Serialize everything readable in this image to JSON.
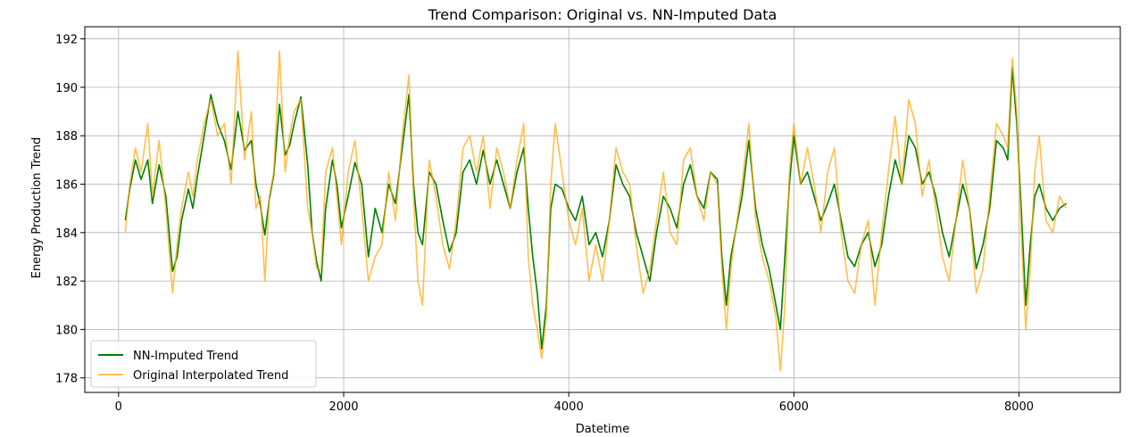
{
  "chart_data": {
    "type": "line",
    "title": "Trend Comparison: Original vs. NN-Imputed Data",
    "xlabel": "Datetime",
    "ylabel": "Energy Production Trend",
    "xlim": [
      -300,
      8900
    ],
    "ylim": [
      177.4,
      192.5
    ],
    "xticks": [
      0,
      2000,
      4000,
      6000,
      8000
    ],
    "yticks": [
      178,
      180,
      182,
      184,
      186,
      188,
      190,
      192
    ],
    "grid": true,
    "legend_position": "lower-left",
    "series": [
      {
        "name": "NN-Imputed Trend",
        "color": "#008000",
        "x": [
          60,
          100,
          150,
          200,
          260,
          300,
          360,
          420,
          480,
          520,
          560,
          620,
          660,
          700,
          760,
          820,
          880,
          940,
          1000,
          1060,
          1120,
          1180,
          1220,
          1260,
          1300,
          1340,
          1380,
          1430,
          1480,
          1520,
          1560,
          1620,
          1680,
          1720,
          1760,
          1800,
          1840,
          1900,
          1940,
          1980,
          2040,
          2100,
          2160,
          2220,
          2280,
          2340,
          2400,
          2460,
          2520,
          2580,
          2620,
          2660,
          2700,
          2760,
          2820,
          2880,
          2940,
          3000,
          3060,
          3120,
          3180,
          3240,
          3300,
          3360,
          3420,
          3480,
          3540,
          3600,
          3640,
          3680,
          3720,
          3760,
          3800,
          3840,
          3880,
          3940,
          4000,
          4060,
          4120,
          4180,
          4240,
          4300,
          4360,
          4420,
          4480,
          4540,
          4600,
          4660,
          4720,
          4780,
          4840,
          4900,
          4960,
          5020,
          5080,
          5140,
          5200,
          5260,
          5320,
          5360,
          5400,
          5440,
          5480,
          5540,
          5600,
          5660,
          5720,
          5780,
          5840,
          5880,
          5920,
          5960,
          6000,
          6060,
          6120,
          6180,
          6240,
          6300,
          6360,
          6420,
          6480,
          6540,
          6600,
          6660,
          6720,
          6780,
          6840,
          6900,
          6960,
          7020,
          7080,
          7140,
          7200,
          7260,
          7320,
          7380,
          7440,
          7500,
          7560,
          7620,
          7680,
          7740,
          7800,
          7860,
          7900,
          7940,
          7980,
          8020,
          8060,
          8100,
          8140,
          8180,
          8240,
          8300,
          8360,
          8420
        ],
        "y": [
          184.5,
          185.8,
          187.0,
          186.2,
          187.0,
          185.2,
          186.8,
          185.5,
          182.4,
          183.0,
          184.5,
          185.8,
          185.0,
          186.3,
          188.0,
          189.7,
          188.5,
          187.8,
          186.6,
          189.0,
          187.4,
          187.8,
          186.0,
          185.1,
          183.9,
          185.4,
          186.4,
          189.3,
          187.2,
          187.6,
          188.5,
          189.6,
          186.8,
          184.0,
          182.8,
          182.0,
          185.0,
          187.0,
          186.0,
          184.2,
          185.5,
          186.9,
          186.0,
          183.0,
          185.0,
          184.0,
          186.0,
          185.2,
          187.5,
          189.7,
          186.0,
          184.0,
          183.5,
          186.5,
          186.0,
          184.5,
          183.2,
          184.0,
          186.5,
          187.0,
          186.0,
          187.4,
          186.0,
          187.0,
          186.0,
          185.0,
          186.5,
          187.5,
          185.0,
          183.0,
          181.5,
          179.2,
          181.0,
          185.0,
          186.0,
          185.8,
          185.0,
          184.5,
          185.5,
          183.5,
          184.0,
          183.0,
          184.5,
          186.8,
          186.0,
          185.5,
          184.0,
          183.0,
          182.0,
          184.0,
          185.5,
          185.0,
          184.2,
          186.0,
          186.8,
          185.5,
          185.0,
          186.5,
          186.2,
          183.0,
          181.0,
          183.0,
          184.0,
          185.5,
          187.8,
          185.0,
          183.5,
          182.5,
          181.0,
          180.0,
          183.0,
          186.0,
          188.0,
          186.0,
          186.5,
          185.5,
          184.5,
          185.2,
          186.0,
          184.5,
          183.0,
          182.6,
          183.5,
          184.0,
          182.6,
          183.5,
          185.5,
          187.0,
          186.0,
          188.0,
          187.5,
          186.0,
          186.5,
          185.5,
          184.0,
          183.0,
          184.5,
          186.0,
          185.0,
          182.5,
          183.5,
          185.0,
          187.8,
          187.5,
          187.0,
          190.8,
          188.5,
          185.0,
          181.0,
          183.5,
          185.5,
          186.0,
          185.0,
          184.5,
          185.0,
          185.2
        ]
      },
      {
        "name": "Original Interpolated Trend",
        "color": "#FFA500",
        "x": [
          60,
          100,
          150,
          200,
          260,
          300,
          360,
          420,
          480,
          520,
          560,
          620,
          660,
          700,
          760,
          820,
          880,
          940,
          1000,
          1060,
          1120,
          1180,
          1220,
          1260,
          1300,
          1340,
          1380,
          1430,
          1480,
          1520,
          1560,
          1620,
          1680,
          1720,
          1760,
          1800,
          1840,
          1900,
          1940,
          1980,
          2040,
          2100,
          2160,
          2220,
          2280,
          2340,
          2400,
          2460,
          2520,
          2580,
          2620,
          2660,
          2700,
          2760,
          2820,
          2880,
          2940,
          3000,
          3060,
          3120,
          3180,
          3240,
          3300,
          3360,
          3420,
          3480,
          3540,
          3600,
          3640,
          3680,
          3720,
          3760,
          3800,
          3840,
          3880,
          3940,
          4000,
          4060,
          4120,
          4180,
          4240,
          4300,
          4360,
          4420,
          4480,
          4540,
          4600,
          4660,
          4720,
          4780,
          4840,
          4900,
          4960,
          5020,
          5080,
          5140,
          5200,
          5260,
          5320,
          5360,
          5400,
          5440,
          5480,
          5540,
          5600,
          5660,
          5720,
          5780,
          5840,
          5880,
          5920,
          5960,
          6000,
          6060,
          6120,
          6180,
          6240,
          6300,
          6360,
          6420,
          6480,
          6540,
          6600,
          6660,
          6720,
          6780,
          6840,
          6900,
          6960,
          7020,
          7080,
          7140,
          7200,
          7260,
          7320,
          7380,
          7440,
          7500,
          7560,
          7620,
          7680,
          7740,
          7800,
          7860,
          7900,
          7940,
          7980,
          8020,
          8060,
          8100,
          8140,
          8180,
          8240,
          8300,
          8360,
          8420
        ],
        "y": [
          184.0,
          186.0,
          187.5,
          186.5,
          188.5,
          185.5,
          187.8,
          185.0,
          181.5,
          183.5,
          185.0,
          186.5,
          185.5,
          187.0,
          188.5,
          189.5,
          188.0,
          188.5,
          186.0,
          191.5,
          187.0,
          189.0,
          185.0,
          185.5,
          182.0,
          185.5,
          186.5,
          191.5,
          186.5,
          188.0,
          189.0,
          189.5,
          185.0,
          184.0,
          182.5,
          182.5,
          186.5,
          187.5,
          185.5,
          183.5,
          186.5,
          187.8,
          185.0,
          182.0,
          183.0,
          183.5,
          186.5,
          184.5,
          188.0,
          190.5,
          185.5,
          182.0,
          181.0,
          187.0,
          185.5,
          183.5,
          182.5,
          184.5,
          187.5,
          188.0,
          186.5,
          188.0,
          185.0,
          187.5,
          186.5,
          185.0,
          187.0,
          188.5,
          183.0,
          181.0,
          180.0,
          178.8,
          180.5,
          186.0,
          188.5,
          186.5,
          184.5,
          183.5,
          185.0,
          182.0,
          183.5,
          182.0,
          184.5,
          187.5,
          186.5,
          186.0,
          183.5,
          181.5,
          182.5,
          184.5,
          186.5,
          184.0,
          183.5,
          187.0,
          187.5,
          185.5,
          184.5,
          186.5,
          186.0,
          182.5,
          180.0,
          182.5,
          184.0,
          186.0,
          188.5,
          184.5,
          183.0,
          182.0,
          180.5,
          178.3,
          181.0,
          186.5,
          188.5,
          186.0,
          187.5,
          186.0,
          184.0,
          186.5,
          187.5,
          184.0,
          182.0,
          181.5,
          183.5,
          184.5,
          181.0,
          184.0,
          186.5,
          188.8,
          186.0,
          189.5,
          188.5,
          185.5,
          187.0,
          185.0,
          183.0,
          182.0,
          184.5,
          187.0,
          185.0,
          181.5,
          182.5,
          185.5,
          188.5,
          188.0,
          187.5,
          191.2,
          189.0,
          184.0,
          180.0,
          182.5,
          186.5,
          188.0,
          184.5,
          184.0,
          185.5,
          185.0
        ]
      }
    ]
  }
}
